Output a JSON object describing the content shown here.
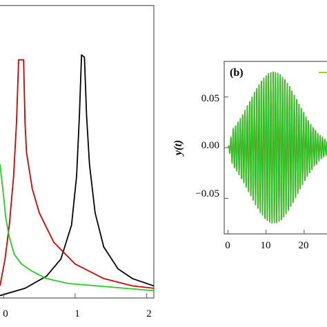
{
  "chart_data": [
    {
      "panel": "a",
      "type": "line",
      "title": "",
      "xlabel": "",
      "ylabel": "",
      "xlim": [
        -0.05,
        2.1
      ],
      "ylim": [
        0,
        1.05
      ],
      "x_ticks": [
        0,
        1,
        2
      ],
      "x_tick_labels": [
        "0",
        "1",
        "2"
      ],
      "series": [
        {
          "color": "#000000",
          "x": [
            -0.05,
            0.3,
            0.6,
            0.8,
            0.95,
            1.02,
            1.06,
            1.09,
            1.13,
            1.16,
            1.2,
            1.28,
            1.4,
            1.6,
            1.8,
            2.1
          ],
          "y": [
            0.01,
            0.04,
            0.09,
            0.16,
            0.3,
            0.5,
            0.75,
            1.0,
            0.99,
            0.75,
            0.55,
            0.35,
            0.21,
            0.12,
            0.08,
            0.05
          ]
        },
        {
          "color": "#cc0000",
          "x": [
            -0.05,
            0.02,
            0.08,
            0.14,
            0.18,
            0.21,
            0.28,
            0.3,
            0.32,
            0.4,
            0.5,
            0.7,
            1.0,
            1.4,
            1.8,
            2.1
          ],
          "y": [
            0.05,
            0.16,
            0.3,
            0.5,
            0.72,
            0.98,
            0.98,
            0.72,
            0.6,
            0.45,
            0.35,
            0.23,
            0.14,
            0.08,
            0.05,
            0.04
          ]
        },
        {
          "color": "#22cc22",
          "x": [
            -0.05,
            0.0,
            0.03,
            0.08,
            0.15,
            0.25,
            0.4,
            0.6,
            0.9,
            1.3,
            1.7,
            2.1
          ],
          "y": [
            0.55,
            0.42,
            0.33,
            0.25,
            0.18,
            0.14,
            0.11,
            0.08,
            0.06,
            0.05,
            0.04,
            0.03
          ]
        }
      ]
    },
    {
      "panel": "b",
      "type": "line",
      "title": "",
      "panel_label": "(b)",
      "xlabel": "",
      "ylabel": "y(t)",
      "xlim": [
        -1,
        28
      ],
      "ylim": [
        -0.085,
        0.085
      ],
      "x_ticks": [
        0,
        10,
        20
      ],
      "x_tick_labels": [
        "0",
        "10",
        "20"
      ],
      "y_ticks": [
        0.05,
        0.0,
        -0.05
      ],
      "y_tick_labels": [
        "0.05",
        "0.00",
        "−0.05"
      ],
      "envelope": {
        "t_peak": 12,
        "amplitude": 0.075,
        "width": 9
      },
      "series": [
        {
          "color": "#cc0000",
          "frequency": 1.62,
          "phase": 0.3
        },
        {
          "color": "#22cc22",
          "frequency": 1.62,
          "phase": 0.0
        }
      ]
    }
  ]
}
